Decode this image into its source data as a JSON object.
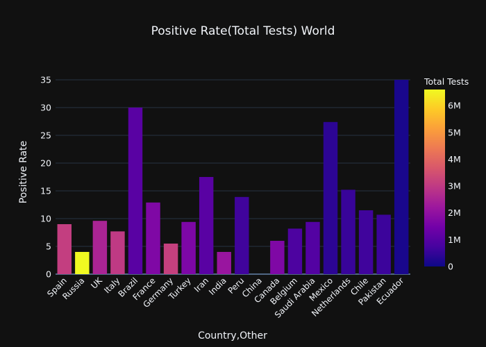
{
  "chart_data": {
    "type": "bar",
    "title": "Positive Rate(Total Tests) World",
    "xlabel": "Country,Other",
    "ylabel": "Positive Rate",
    "ylim": [
      0,
      35
    ],
    "yticks": [
      0,
      5,
      10,
      15,
      20,
      25,
      30,
      35
    ],
    "grid": true,
    "categories": [
      "Spain",
      "Russia",
      "UK",
      "Italy",
      "Brazil",
      "France",
      "Germany",
      "Turkey",
      "Iran",
      "India",
      "Peru",
      "China",
      "Canada",
      "Belgium",
      "Saudi Arabia",
      "Mexico",
      "Netherlands",
      "Chile",
      "Pakistan",
      "Ecuador"
    ],
    "values": [
      9.0,
      4.0,
      9.6,
      7.7,
      30.0,
      12.9,
      5.5,
      9.4,
      17.5,
      4.0,
      13.9,
      0,
      6.0,
      8.2,
      9.4,
      27.4,
      15.2,
      11.5,
      10.7,
      35.0
    ],
    "color_values": [
      3100000,
      6600000,
      2500000,
      3000000,
      1050000,
      1700000,
      3150000,
      1650000,
      1050000,
      2150000,
      650000,
      0,
      1700000,
      850000,
      950000,
      400000,
      550000,
      650000,
      600000,
      150000
    ],
    "colorbar": {
      "title": "Total Tests",
      "range": [
        0,
        6600000
      ],
      "ticks": [
        0,
        1000000,
        2000000,
        3000000,
        4000000,
        5000000,
        6000000
      ],
      "tick_labels": [
        "0",
        "1M",
        "2M",
        "3M",
        "4M",
        "5M",
        "6M"
      ],
      "colors": [
        "#0d0887",
        "#46039f",
        "#7201a8",
        "#9c179e",
        "#bd3786",
        "#d8576b",
        "#ed7953",
        "#fb9f3a",
        "#fdca26",
        "#f0f921"
      ]
    },
    "background": "#111111",
    "grid_color": "#283442"
  }
}
